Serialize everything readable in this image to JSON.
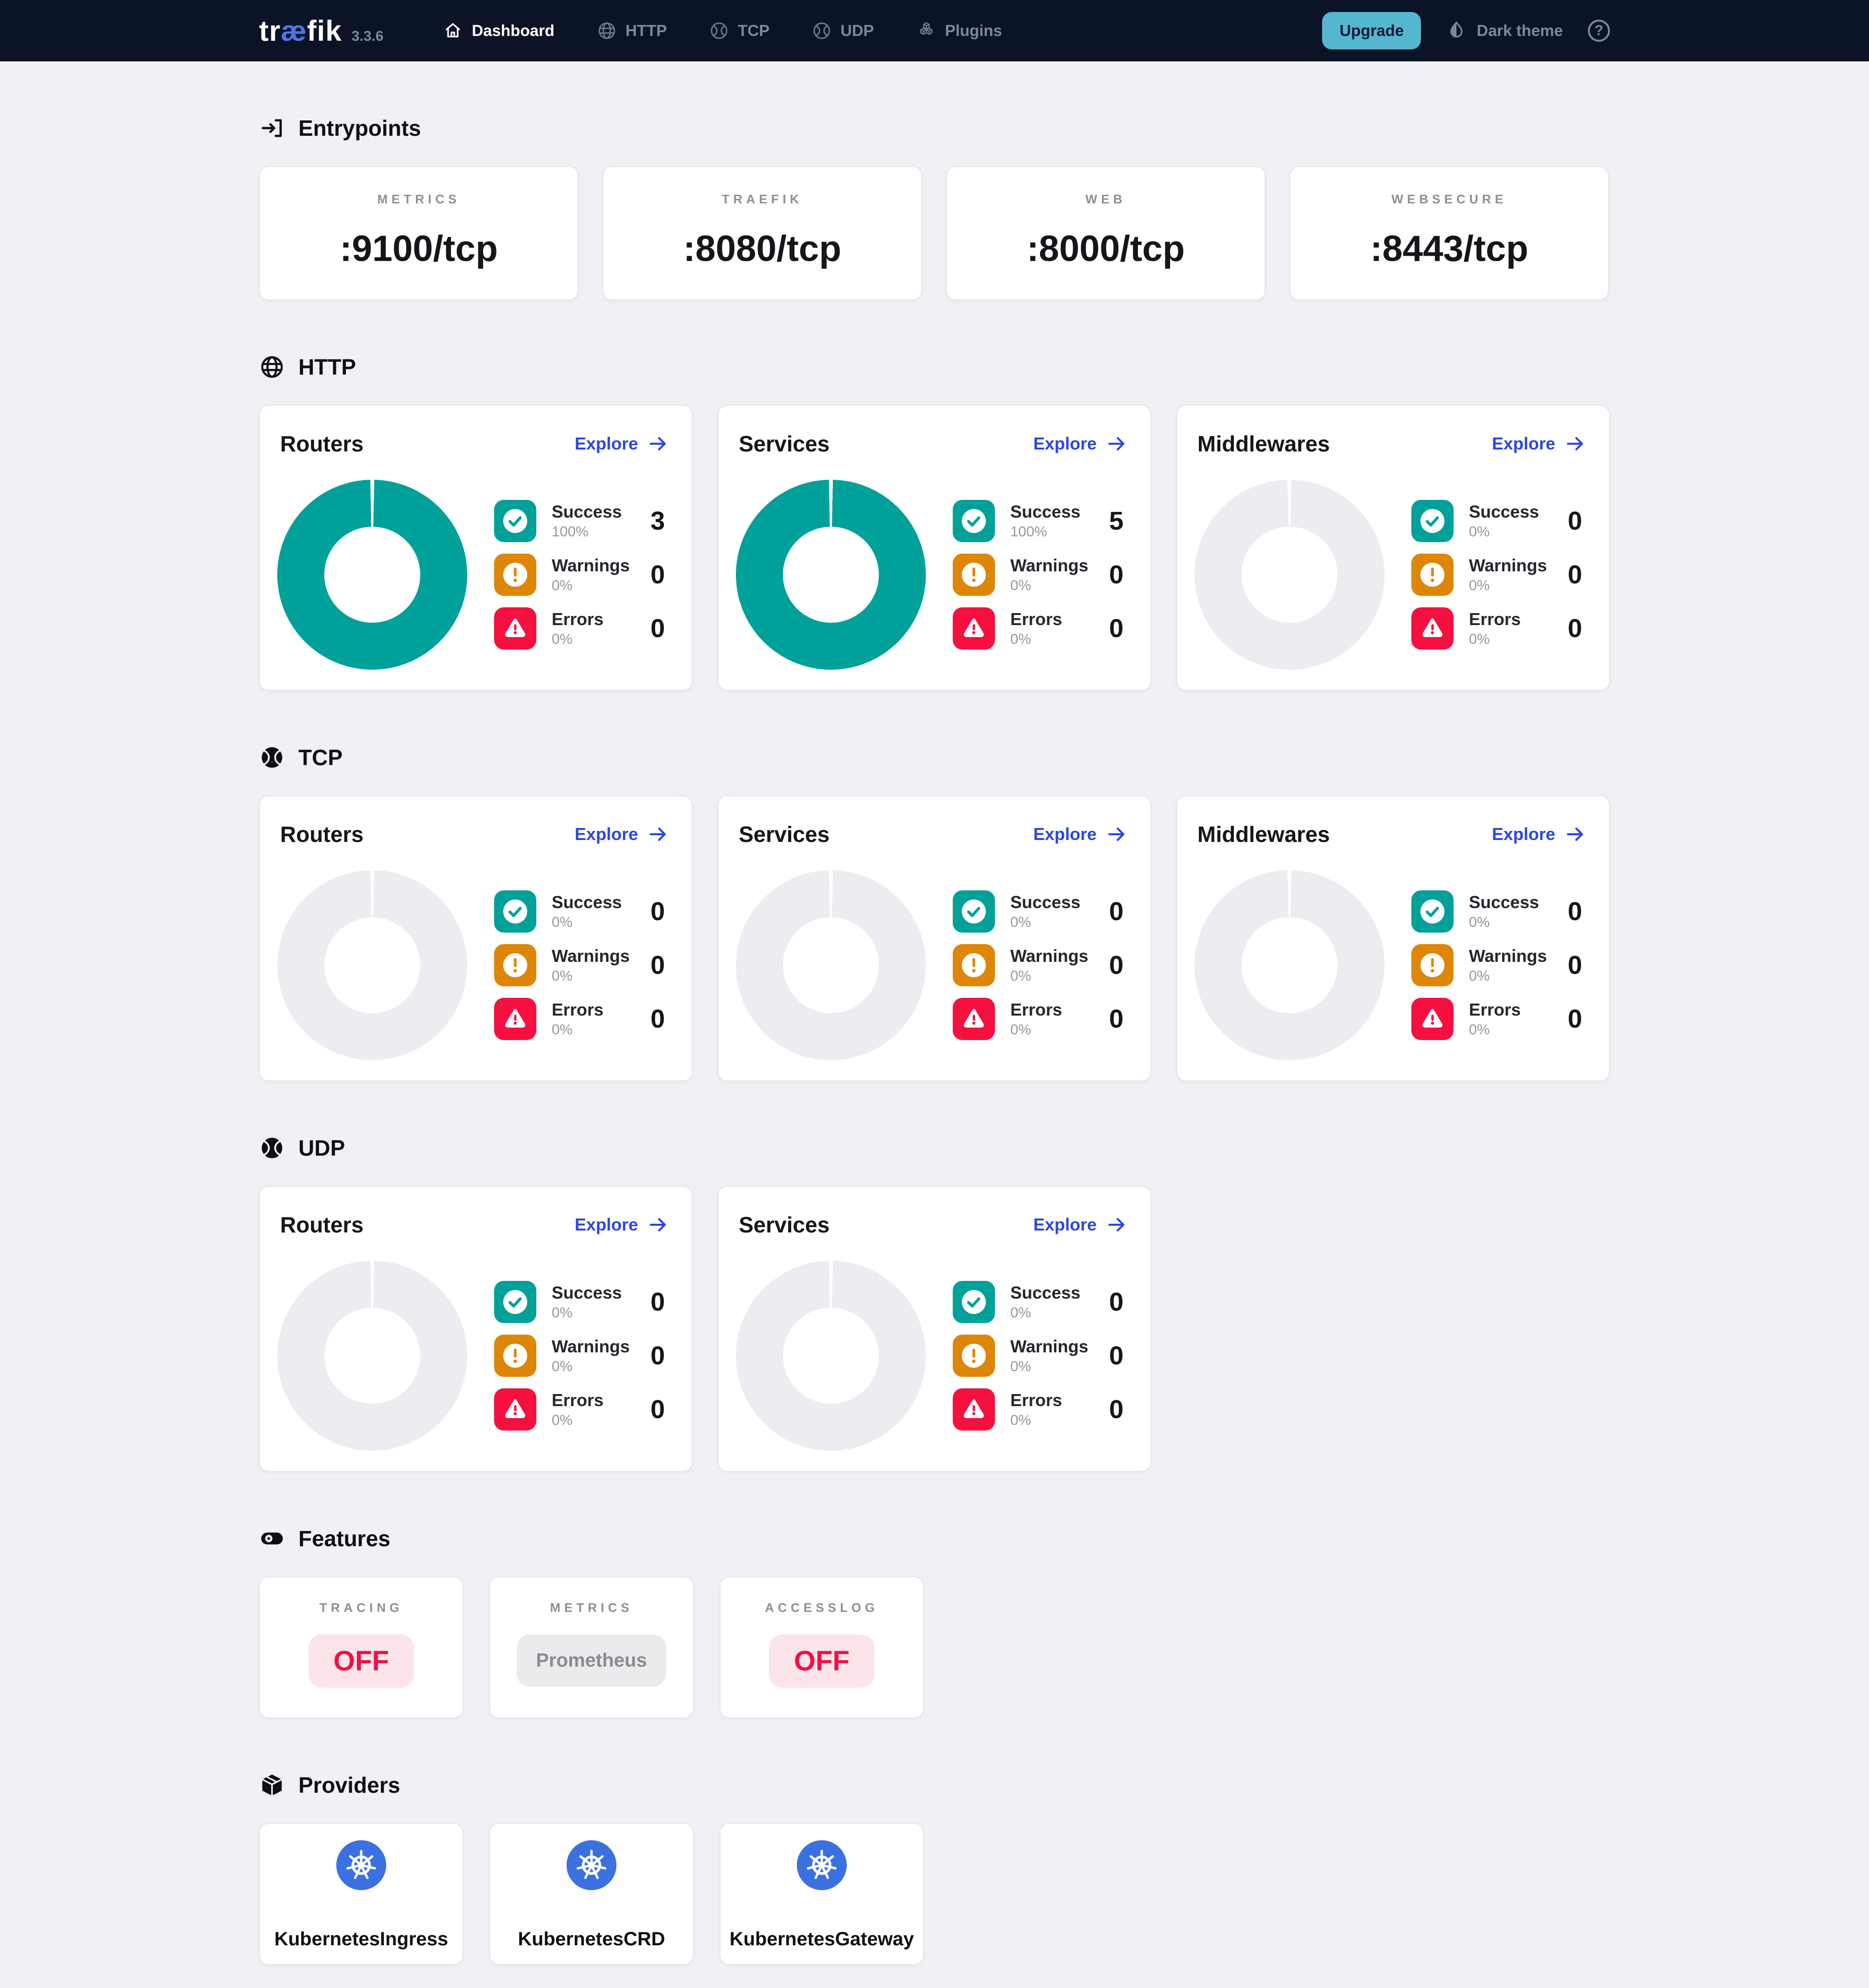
{
  "colors": {
    "navbar_bg": "#0b1327",
    "page_bg": "#f0f1f4",
    "logo_ae_blue": "#4d78e2",
    "upgrade_bg": "#54b7d0",
    "link_blue": "#2b46e1",
    "teal": "#00a19a",
    "warning_orange": "#dd8607",
    "error_red": "#f5103f",
    "donut_empty": "#ebedf0",
    "kubernetes_blue": "#3b70e0",
    "off_text": "#f20f45",
    "off_bg": "#fce4eb"
  },
  "navbar": {
    "logo_pre": "tr",
    "logo_ae": "æ",
    "logo_post": "fik",
    "version": "3.3.6",
    "items": [
      {
        "label": "Dashboard",
        "icon": "home-icon",
        "active": true
      },
      {
        "label": "HTTP",
        "icon": "globe-icon",
        "active": false
      },
      {
        "label": "TCP",
        "icon": "ball-icon",
        "active": false
      },
      {
        "label": "UDP",
        "icon": "ball-icon",
        "active": false
      },
      {
        "label": "Plugins",
        "icon": "cubes-icon",
        "active": false
      }
    ],
    "upgrade_label": "Upgrade",
    "theme_label": "Dark theme"
  },
  "sections": {
    "entrypoints": {
      "title": "Entrypoints",
      "cards": [
        {
          "label": "METRICS",
          "value": ":9100/tcp"
        },
        {
          "label": "TRAEFIK",
          "value": ":8080/tcp"
        },
        {
          "label": "WEB",
          "value": ":8000/tcp"
        },
        {
          "label": "WEBSECURE",
          "value": ":8443/tcp"
        }
      ]
    },
    "http": {
      "title": "HTTP",
      "explore_label": "Explore",
      "cards": [
        {
          "title": "Routers",
          "donut_success_pct": 100,
          "stats": [
            {
              "kind": "success",
              "label": "Success",
              "pct": "100%",
              "count": "3"
            },
            {
              "kind": "warning",
              "label": "Warnings",
              "pct": "0%",
              "count": "0"
            },
            {
              "kind": "error",
              "label": "Errors",
              "pct": "0%",
              "count": "0"
            }
          ]
        },
        {
          "title": "Services",
          "donut_success_pct": 100,
          "stats": [
            {
              "kind": "success",
              "label": "Success",
              "pct": "100%",
              "count": "5"
            },
            {
              "kind": "warning",
              "label": "Warnings",
              "pct": "0%",
              "count": "0"
            },
            {
              "kind": "error",
              "label": "Errors",
              "pct": "0%",
              "count": "0"
            }
          ]
        },
        {
          "title": "Middlewares",
          "donut_success_pct": 0,
          "stats": [
            {
              "kind": "success",
              "label": "Success",
              "pct": "0%",
              "count": "0"
            },
            {
              "kind": "warning",
              "label": "Warnings",
              "pct": "0%",
              "count": "0"
            },
            {
              "kind": "error",
              "label": "Errors",
              "pct": "0%",
              "count": "0"
            }
          ]
        }
      ]
    },
    "tcp": {
      "title": "TCP",
      "explore_label": "Explore",
      "cards": [
        {
          "title": "Routers",
          "donut_success_pct": 0,
          "stats": [
            {
              "kind": "success",
              "label": "Success",
              "pct": "0%",
              "count": "0"
            },
            {
              "kind": "warning",
              "label": "Warnings",
              "pct": "0%",
              "count": "0"
            },
            {
              "kind": "error",
              "label": "Errors",
              "pct": "0%",
              "count": "0"
            }
          ]
        },
        {
          "title": "Services",
          "donut_success_pct": 0,
          "stats": [
            {
              "kind": "success",
              "label": "Success",
              "pct": "0%",
              "count": "0"
            },
            {
              "kind": "warning",
              "label": "Warnings",
              "pct": "0%",
              "count": "0"
            },
            {
              "kind": "error",
              "label": "Errors",
              "pct": "0%",
              "count": "0"
            }
          ]
        },
        {
          "title": "Middlewares",
          "donut_success_pct": 0,
          "stats": [
            {
              "kind": "success",
              "label": "Success",
              "pct": "0%",
              "count": "0"
            },
            {
              "kind": "warning",
              "label": "Warnings",
              "pct": "0%",
              "count": "0"
            },
            {
              "kind": "error",
              "label": "Errors",
              "pct": "0%",
              "count": "0"
            }
          ]
        }
      ]
    },
    "udp": {
      "title": "UDP",
      "explore_label": "Explore",
      "cards": [
        {
          "title": "Routers",
          "donut_success_pct": 0,
          "stats": [
            {
              "kind": "success",
              "label": "Success",
              "pct": "0%",
              "count": "0"
            },
            {
              "kind": "warning",
              "label": "Warnings",
              "pct": "0%",
              "count": "0"
            },
            {
              "kind": "error",
              "label": "Errors",
              "pct": "0%",
              "count": "0"
            }
          ]
        },
        {
          "title": "Services",
          "donut_success_pct": 0,
          "stats": [
            {
              "kind": "success",
              "label": "Success",
              "pct": "0%",
              "count": "0"
            },
            {
              "kind": "warning",
              "label": "Warnings",
              "pct": "0%",
              "count": "0"
            },
            {
              "kind": "error",
              "label": "Errors",
              "pct": "0%",
              "count": "0"
            }
          ]
        }
      ]
    },
    "features": {
      "title": "Features",
      "cards": [
        {
          "label": "TRACING",
          "value": "OFF",
          "variant": "off"
        },
        {
          "label": "METRICS",
          "value": "Prometheus",
          "variant": "neutral"
        },
        {
          "label": "ACCESSLOG",
          "value": "OFF",
          "variant": "off"
        }
      ]
    },
    "providers": {
      "title": "Providers",
      "cards": [
        {
          "name": "KubernetesIngress"
        },
        {
          "name": "KubernetesCRD"
        },
        {
          "name": "KubernetesGateway"
        }
      ]
    }
  }
}
